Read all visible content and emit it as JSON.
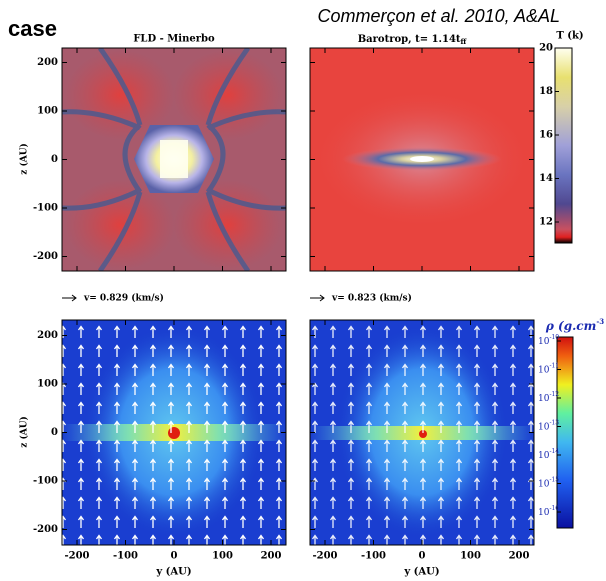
{
  "header": {
    "label": "case",
    "citation": "Commerçon et al. 2010, A&AL"
  },
  "panels": [
    {
      "title": "FLD - Minerbo",
      "velocity": "v=  0.829 (km/s)"
    },
    {
      "title": "Barotrop, t= 1.14t",
      "title_sub": "ff",
      "velocity": "v=  0.823 (km/s)"
    }
  ],
  "axes": {
    "z_label": "z (AU)",
    "y_label": "y (AU)",
    "z_ticks": [
      "200",
      "100",
      "0",
      "-100",
      "-200"
    ],
    "y_ticks": [
      "-200",
      "-100",
      "0",
      "100",
      "200"
    ]
  },
  "colorbars": [
    {
      "label": "T (k)",
      "ticks": [
        "20",
        "18",
        "16",
        "14",
        "12"
      ]
    },
    {
      "label": "ρ (g.cm",
      "label_sup": "-3",
      "ticks": [
        {
          "base": "10",
          "exp": "-10"
        },
        {
          "base": "10",
          "exp": "-11"
        },
        {
          "base": "10",
          "exp": "-12"
        },
        {
          "base": "10",
          "exp": "-13"
        },
        {
          "base": "10",
          "exp": "-14"
        },
        {
          "base": "10",
          "exp": "-15"
        },
        {
          "base": "10",
          "exp": "-16"
        }
      ]
    }
  ]
}
